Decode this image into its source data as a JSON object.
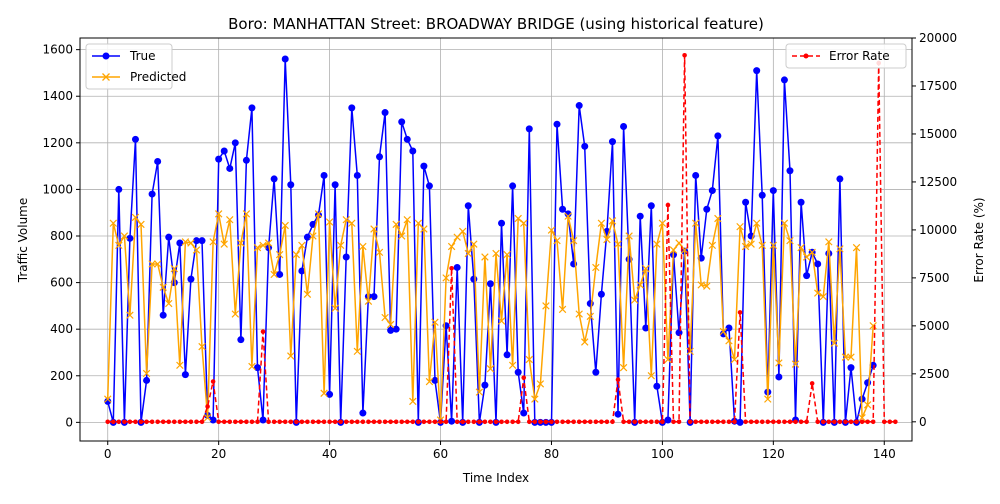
{
  "chart_data": {
    "type": "line",
    "title": "Boro: MANHATTAN Street: BROADWAY BRIDGE (using historical feature)",
    "xlabel": "Time Index",
    "ylabel": "Traffic Volume",
    "y2label": "Error Rate (%)",
    "xlim": [
      -5,
      145
    ],
    "ylim": [
      -80,
      1650
    ],
    "y2lim": [
      -1000,
      20000
    ],
    "xticks": [
      0,
      20,
      40,
      60,
      80,
      100,
      120,
      140
    ],
    "yticks": [
      0,
      200,
      400,
      600,
      800,
      1000,
      1200,
      1400,
      1600
    ],
    "y2ticks": [
      0,
      2500,
      5000,
      7500,
      10000,
      12500,
      15000,
      17500,
      20000
    ],
    "grid": true,
    "legend_left_position": "upper-left",
    "legend_right_position": "upper-right",
    "colors": {
      "true": "#0000ff",
      "predicted": "#ffa500",
      "error": "#ff0000"
    },
    "series": [
      {
        "name": "True",
        "axis": "left",
        "marker": "circle",
        "values": [
          90,
          0,
          1000,
          0,
          790,
          1215,
          0,
          180,
          980,
          1120,
          460,
          795,
          600,
          770,
          205,
          615,
          780,
          780,
          30,
          10,
          1130,
          1165,
          1090,
          1200,
          355,
          1125,
          1350,
          235,
          10,
          750,
          1045,
          635,
          1560,
          1020,
          0,
          650,
          795,
          850,
          890,
          1060,
          120,
          1020,
          0,
          710,
          1350,
          1060,
          40,
          540,
          540,
          1140,
          1330,
          395,
          400,
          1290,
          1215,
          1165,
          0,
          1100,
          1015,
          180,
          0,
          415,
          5,
          665,
          0,
          930,
          615,
          0,
          160,
          595,
          0,
          855,
          290,
          1015,
          215,
          40,
          1260,
          0,
          0,
          0,
          0,
          1280,
          915,
          895,
          680,
          1360,
          1185,
          510,
          215,
          550,
          820,
          1205,
          35,
          1270,
          700,
          0,
          885,
          405,
          930,
          155,
          0,
          10,
          720,
          385,
          735,
          0,
          1060,
          705,
          915,
          995,
          1230,
          380,
          405,
          5,
          0,
          945,
          800,
          1510,
          975,
          130,
          995,
          195,
          1470,
          1080,
          10,
          945,
          630,
          730,
          680,
          0,
          725,
          0,
          1045,
          0,
          235,
          0,
          100,
          170,
          245
        ]
      },
      {
        "name": "Predicted",
        "axis": "left",
        "marker": "x",
        "values": [
          100,
          855,
          760,
          800,
          460,
          880,
          850,
          210,
          680,
          680,
          580,
          510,
          660,
          245,
          775,
          770,
          740,
          325,
          20,
          775,
          895,
          765,
          870,
          465,
          770,
          895,
          240,
          750,
          760,
          770,
          635,
          720,
          845,
          285,
          720,
          760,
          550,
          800,
          895,
          125,
          860,
          490,
          760,
          870,
          855,
          305,
          755,
          520,
          830,
          730,
          450,
          420,
          850,
          800,
          870,
          90,
          855,
          830,
          175,
          430,
          10,
          620,
          755,
          795,
          820,
          725,
          765,
          130,
          710,
          230,
          725,
          435,
          720,
          245,
          875,
          855,
          270,
          100,
          165,
          500,
          825,
          780,
          485,
          885,
          780,
          465,
          345,
          455,
          665,
          855,
          785,
          865,
          765,
          235,
          800,
          525,
          590,
          660,
          200,
          765,
          855,
          270,
          740,
          770,
          740,
          305,
          855,
          590,
          585,
          760,
          875,
          390,
          350,
          270,
          840,
          755,
          765,
          855,
          760,
          100,
          760,
          255,
          855,
          780,
          250,
          750,
          710,
          730,
          555,
          540,
          775,
          340,
          745,
          280,
          280,
          750,
          20,
          75,
          415
        ]
      },
      {
        "name": "Error Rate",
        "axis": "right",
        "marker": "dot",
        "values": [
          0,
          0,
          0,
          0,
          0,
          0,
          0,
          0,
          0,
          0,
          0,
          0,
          0,
          0,
          0,
          0,
          0,
          0,
          800,
          2100,
          0,
          0,
          0,
          0,
          0,
          0,
          0,
          0,
          4700,
          0,
          0,
          0,
          0,
          0,
          0,
          0,
          0,
          0,
          0,
          0,
          0,
          0,
          0,
          0,
          0,
          0,
          0,
          0,
          0,
          0,
          0,
          0,
          0,
          0,
          0,
          0,
          0,
          0,
          0,
          0,
          0,
          0,
          8000,
          0,
          0,
          0,
          0,
          0,
          0,
          0,
          0,
          0,
          0,
          0,
          0,
          2300,
          0,
          0,
          0,
          0,
          0,
          0,
          0,
          0,
          0,
          0,
          0,
          0,
          0,
          0,
          0,
          0,
          2200,
          0,
          0,
          0,
          0,
          0,
          0,
          0,
          0,
          11300,
          0,
          0,
          19100,
          0,
          0,
          0,
          0,
          0,
          0,
          0,
          0,
          0,
          5700,
          0,
          0,
          0,
          0,
          0,
          0,
          0,
          0,
          0,
          0,
          0,
          0,
          2000,
          0,
          0,
          0,
          0,
          0,
          0,
          0,
          0,
          0,
          0,
          0,
          18700,
          0,
          0,
          0
        ]
      }
    ]
  }
}
